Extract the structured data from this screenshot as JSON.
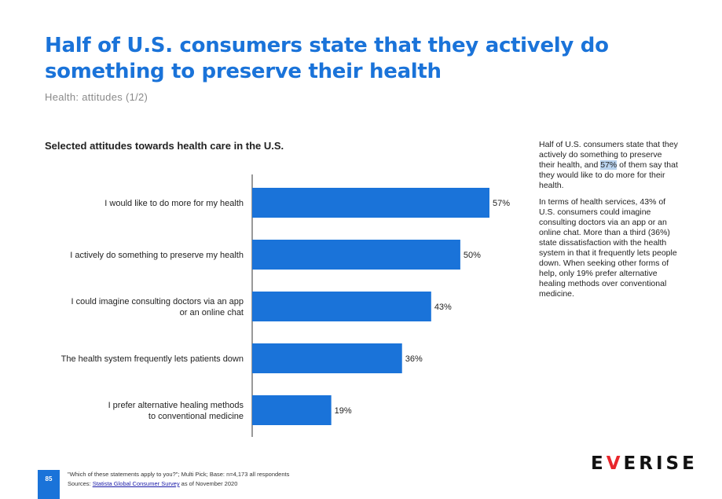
{
  "header": {
    "title": "Half of U.S. consumers state that they actively  do something to preserve their health",
    "subtitle": "Health: attitudes (1/2)"
  },
  "chart_data": {
    "type": "bar",
    "orientation": "horizontal",
    "title": "Selected attitudes towards health care in the U.S.",
    "categories": [
      [
        "I would like to do more for my health"
      ],
      [
        "I actively do something to preserve my health"
      ],
      [
        "I could imagine consulting doctors via an app",
        "or an online chat"
      ],
      [
        "The health system frequently lets patients down"
      ],
      [
        "I prefer alternative healing methods",
        "to conventional medicine"
      ]
    ],
    "values": [
      57,
      50,
      43,
      36,
      19
    ],
    "value_labels": [
      "57%",
      "50%",
      "43%",
      "36%",
      "19%"
    ],
    "unit": "%",
    "xlim": [
      0,
      57
    ],
    "bar_color": "#1a73d9",
    "grid": false,
    "legend": "none"
  },
  "sidebar": {
    "para1_before": "Half of U.S. consumers state that they actively do something to preserve their health, and ",
    "para1_highlight": "57%",
    "para1_after": " of them say that they would like to do more for their health.",
    "para2": "In terms of health services, 43% of U.S. consumers could imagine consulting doctors via an app or an online chat. More than a third (36%) state dissatisfaction with the health system in that it frequently lets people down. When seeking other forms of help, only 19% prefer alternative healing methods over conventional medicine."
  },
  "footer": {
    "page_number": "85",
    "note": "\"Which of these statements apply to you?\"; Multi Pick; Base: n=4,173 all respondents",
    "sources_label": "Sources: ",
    "source_link": "Statista Global Consumer Survey",
    "source_suffix": " as of November 2020"
  },
  "logo": {
    "text_before": "E",
    "text_mark": "V",
    "text_after": "ERISE"
  }
}
